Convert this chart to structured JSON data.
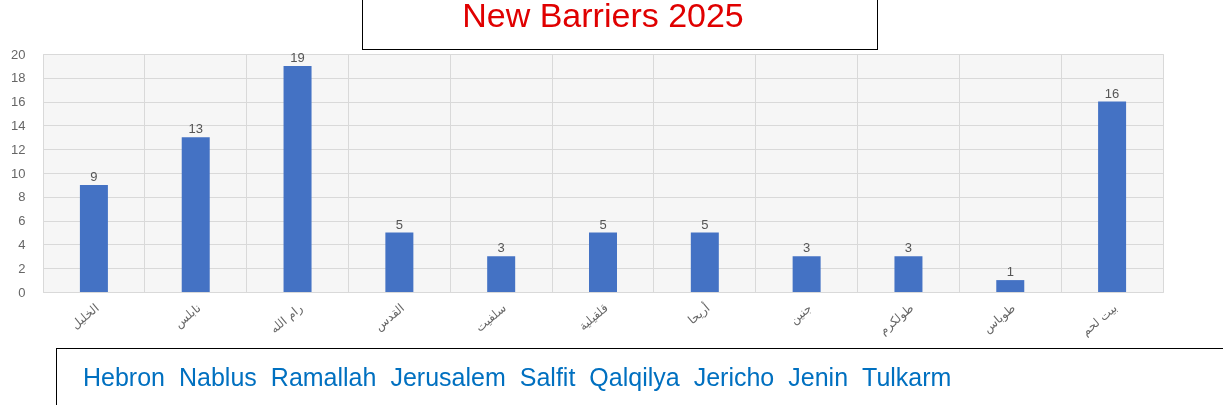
{
  "chart_data": {
    "type": "bar",
    "title": "New Barriers 2025",
    "categories": [
      "الخليل",
      "نابلس",
      "رام الله",
      "القدس",
      "سلفيت",
      "قلقيلية",
      "أريحا",
      "جنين",
      "طولكرم",
      "طوباس",
      "بيت لحم"
    ],
    "values": [
      9,
      13,
      19,
      5,
      3,
      5,
      5,
      3,
      3,
      1,
      16
    ],
    "color": "#4472c4",
    "ylim": [
      0,
      20
    ],
    "yticks": [
      0,
      2,
      4,
      6,
      8,
      10,
      12,
      14,
      16,
      18,
      20
    ],
    "grid": true,
    "data_labels": true,
    "annotations": [
      "Hebron",
      "Nablus",
      "Ramallah",
      "Jerusalem",
      "Salfit",
      "Qalqilya",
      "Jericho",
      "Jenin",
      "Tulkarm"
    ]
  }
}
